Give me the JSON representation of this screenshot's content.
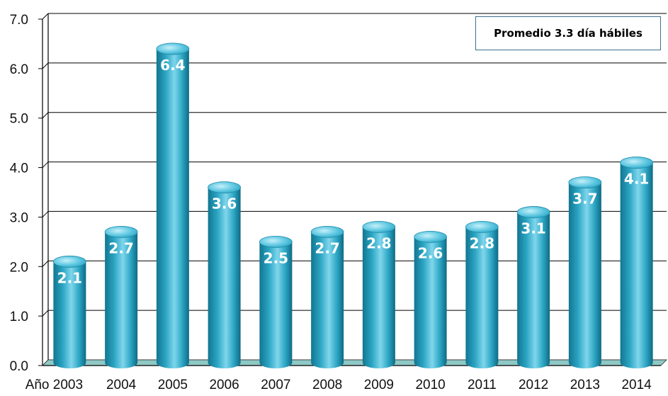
{
  "chart_data": {
    "type": "bar",
    "categories": [
      "Año 2003",
      "2004",
      "2005",
      "2006",
      "2007",
      "2008",
      "2009",
      "2010",
      "2011",
      "2012",
      "2013",
      "2014"
    ],
    "values": [
      2.1,
      2.7,
      6.4,
      3.6,
      2.5,
      2.7,
      2.8,
      2.6,
      2.8,
      3.1,
      3.7,
      4.1
    ],
    "data_labels": [
      "2.1",
      "2.7",
      "6.4",
      "3.6",
      "2.5",
      "2.7",
      "2.8",
      "2.6",
      "2.8",
      "3.1",
      "3.7",
      "4.1"
    ],
    "y_ticks": [
      "0.0",
      "1.0",
      "2.0",
      "3.0",
      "4.0",
      "5.0",
      "6.0",
      "7.0"
    ],
    "ylim": [
      0,
      7
    ],
    "grid": true,
    "bar_style": "3d-cylinder",
    "colors": {
      "bar": "#2aa4c2",
      "bar_light": "#8fdcef",
      "bar_dark": "#127691",
      "floor": "#8fc9c6",
      "grid": "#000000"
    },
    "annotation": "Promedio 3.3 día hábiles",
    "annotation_placement": "top-right"
  }
}
